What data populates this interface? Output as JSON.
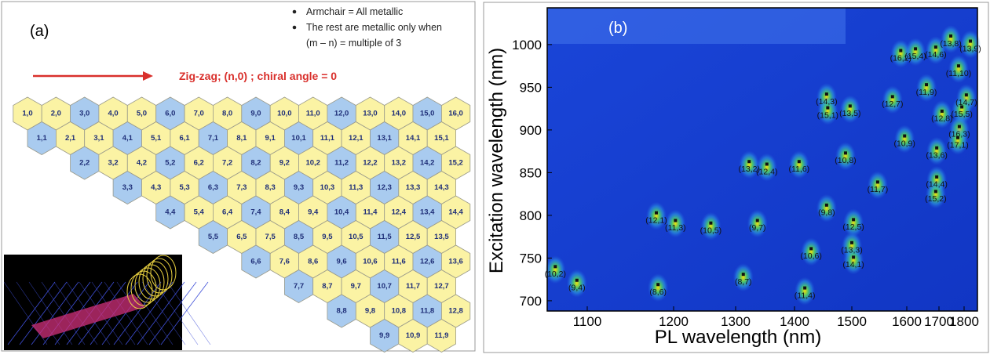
{
  "panel_a": {
    "label": "(a)",
    "notes": [
      [
        "Armchair = All metallic"
      ],
      [
        "The rest are metallic only when",
        "(m – n) = multiple of 3"
      ]
    ],
    "arrow_label": "Zig-zag; (n,0) ; chiral angle = 0",
    "arrow_color": "#d9302c",
    "metallic_color": "#a9cbef",
    "semiconducting_color": "#fbf3a4",
    "rows": [
      [
        "1,0",
        "2,0",
        "3,0",
        "4,0",
        "5,0",
        "6,0",
        "7,0",
        "8,0",
        "9,0",
        "10,0",
        "11,0",
        "12,0",
        "13,0",
        "14,0",
        "15,0",
        "16,0"
      ],
      [
        "1,1",
        "2,1",
        "3,1",
        "4,1",
        "5,1",
        "6,1",
        "7,1",
        "8,1",
        "9,1",
        "10,1",
        "11,1",
        "12,1",
        "13,1",
        "14,1",
        "15,1"
      ],
      [
        "2,2",
        "3,2",
        "4,2",
        "5,2",
        "6,2",
        "7,2",
        "8,2",
        "9,2",
        "10,2",
        "11,2",
        "12,2",
        "13,2",
        "14,2",
        "15,2"
      ],
      [
        "3,3",
        "4,3",
        "5,3",
        "6,3",
        "7,3",
        "8,3",
        "9,3",
        "10,3",
        "11,3",
        "12,3",
        "13,3",
        "14,3"
      ],
      [
        "4,4",
        "5,4",
        "6,4",
        "7,4",
        "8,4",
        "9,4",
        "10,4",
        "11,4",
        "12,4",
        "13,4",
        "14,4"
      ],
      [
        "5,5",
        "6,5",
        "7,5",
        "8,5",
        "9,5",
        "10,5",
        "11,5",
        "12,5",
        "13,5"
      ],
      [
        "6,6",
        "7,6",
        "8,6",
        "9,6",
        "10,6",
        "11,6",
        "12,6",
        "13,6"
      ],
      [
        "7,7",
        "8,7",
        "9,7",
        "10,7",
        "11,7",
        "12,7"
      ],
      [
        "8,8",
        "9,8",
        "10,8",
        "11,8",
        "12,8"
      ],
      [
        "9,9",
        "10,9",
        "11,9"
      ]
    ]
  },
  "chart_data": {
    "type": "scatter",
    "panel_label": "(b)",
    "x_label": "PL wavelength (nm)",
    "y_label": "Excitation wavelength (nm)",
    "point_labels": [
      "(10,2)",
      "(9,4)",
      "(8,6)",
      "(12,1)",
      "(11,3)",
      "(10,5)",
      "(9,7)",
      "(8,7)",
      "(11,4)",
      "(10,6)",
      "(9,8)",
      "(13,2)",
      "(12,4)",
      "(11,6)",
      "(10,8)",
      "(14,3)",
      "(15,1)",
      "(13,5)",
      "(12,7)",
      "(16,2)",
      "(15,4)",
      "(14,6)",
      "(13,8)",
      "(13,9)",
      "(11,10)",
      "(14,7)",
      "(11,9)",
      "(12,8)",
      "(15,5)",
      "(16,3)",
      "(17,1)",
      "(10,9)",
      "(13,6)",
      "(14,4)",
      "(15,2)",
      "(11,7)",
      "(12,5)",
      "(13,3)",
      "(14,1)"
    ],
    "x": [
      1063,
      1088,
      1182,
      1180,
      1203,
      1260,
      1337,
      1313,
      1418,
      1429,
      1456,
      1323,
      1353,
      1408,
      1489,
      1456,
      1458,
      1497,
      1574,
      1589,
      1627,
      1690,
      1747,
      1825,
      1778,
      1809,
      1661,
      1712,
      1791,
      1781,
      1775,
      1596,
      1693,
      1693,
      1690,
      1547,
      1503,
      1500,
      1503
    ],
    "y": [
      740,
      724,
      719,
      803,
      794,
      791,
      794,
      731,
      715,
      761,
      812,
      863,
      860,
      863,
      873,
      942,
      926,
      928,
      939,
      993,
      995,
      997,
      1010,
      1004,
      975,
      941,
      953,
      922,
      927,
      904,
      891,
      893,
      879,
      845,
      828,
      839,
      795,
      768,
      751
    ],
    "xlim": [
      1055,
      1850
    ],
    "ylim": [
      688,
      1043
    ],
    "xticks": [
      1100,
      1200,
      1300,
      1400,
      1500,
      1600,
      1700,
      1800
    ],
    "yticks": [
      700,
      750,
      800,
      850,
      900,
      950,
      1000
    ],
    "point_color": "#111111"
  }
}
